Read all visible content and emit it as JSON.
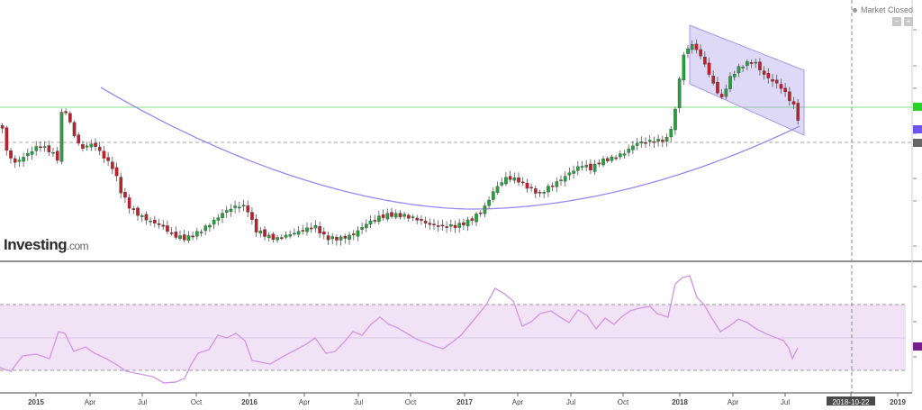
{
  "header": {
    "status_text": "Market Closed"
  },
  "brand": {
    "name": "Investing",
    "suffix": ".com"
  },
  "colors": {
    "up": "#22a43a",
    "down": "#c0202a",
    "ma": "#9b86f0",
    "rsi": "#d29ae6",
    "channel": "#a89bea",
    "rsi_band": "#f1e2f6",
    "hline": "#7fe07f"
  },
  "chart_data": [
    {
      "type": "candlestick",
      "title": "",
      "x_axis": {
        "ticks": [
          "2015",
          "Apr",
          "Jul",
          "Oct",
          "2016",
          "Apr",
          "Jul",
          "Oct",
          "2017",
          "Apr",
          "Jul",
          "Oct",
          "2018",
          "Apr",
          "Jul",
          "2018-10-22",
          "2019"
        ],
        "highlighted": "2018-10-22"
      },
      "overlays": [
        "moving average",
        "descending channel",
        "horizontal level"
      ],
      "grid": false
    },
    {
      "type": "line",
      "title": "",
      "indicator": "RSI",
      "band": "shaded between upper and lower dashed levels"
    }
  ]
}
